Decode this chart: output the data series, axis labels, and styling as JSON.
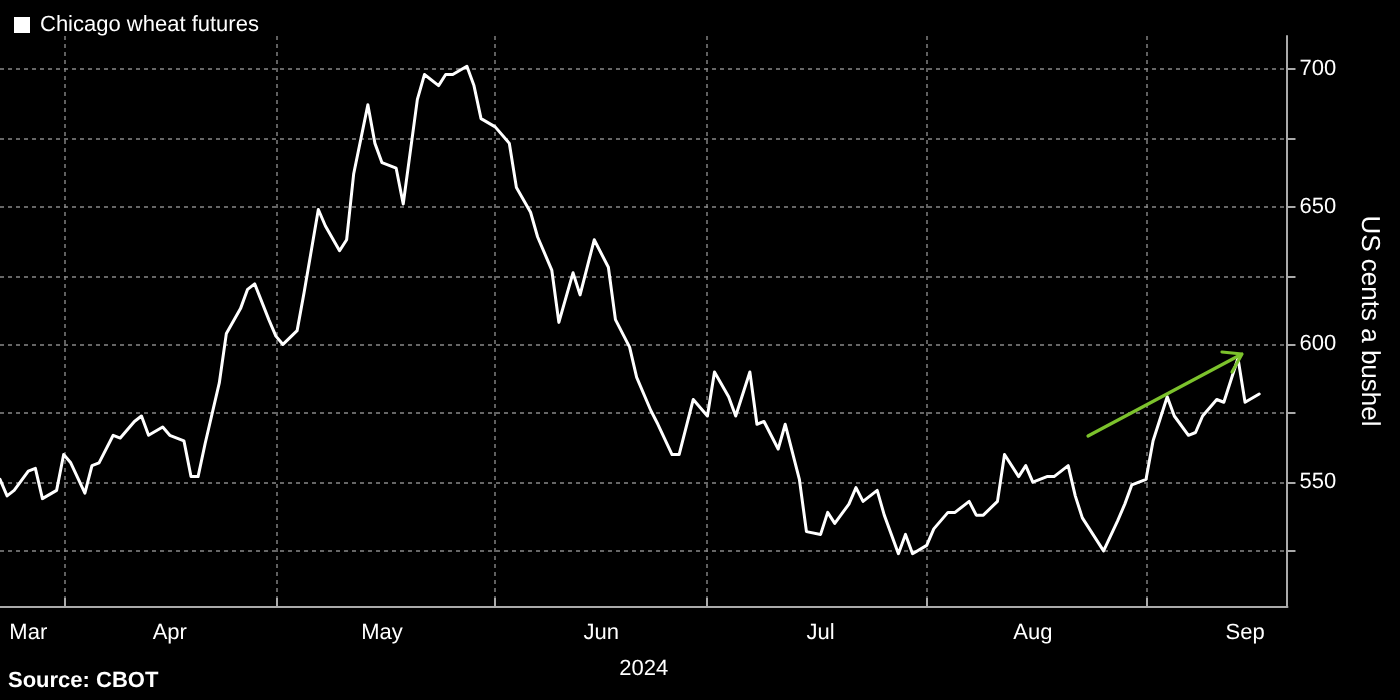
{
  "chart_data": {
    "type": "line",
    "xlabel": "2024",
    "ylabel": "US cents a bushel",
    "annotations": [
      "Source: CBOT"
    ],
    "x": [
      "2024-03-23",
      "2024-03-24",
      "2024-03-25",
      "2024-03-27",
      "2024-03-28",
      "2024-03-29",
      "2024-03-31",
      "2024-04-01",
      "2024-04-02",
      "2024-04-04",
      "2024-04-05",
      "2024-04-06",
      "2024-04-08",
      "2024-04-09",
      "2024-04-11",
      "2024-04-12",
      "2024-04-13",
      "2024-04-15",
      "2024-04-16",
      "2024-04-18",
      "2024-04-19",
      "2024-04-20",
      "2024-04-21",
      "2024-04-23",
      "2024-04-24",
      "2024-04-26",
      "2024-04-27",
      "2024-04-28",
      "2024-04-30",
      "2024-05-01",
      "2024-05-02",
      "2024-05-04",
      "2024-05-05",
      "2024-05-07",
      "2024-05-08",
      "2024-05-10",
      "2024-05-11",
      "2024-05-12",
      "2024-05-14",
      "2024-05-15",
      "2024-05-16",
      "2024-05-18",
      "2024-05-19",
      "2024-05-21",
      "2024-05-22",
      "2024-05-24",
      "2024-05-25",
      "2024-05-26",
      "2024-05-28",
      "2024-05-29",
      "2024-05-30",
      "2024-06-01",
      "2024-06-03",
      "2024-06-04",
      "2024-06-06",
      "2024-06-07",
      "2024-06-09",
      "2024-06-10",
      "2024-06-12",
      "2024-06-13",
      "2024-06-15",
      "2024-06-17",
      "2024-06-18",
      "2024-06-20",
      "2024-06-21",
      "2024-06-23",
      "2024-06-24",
      "2024-06-26",
      "2024-06-27",
      "2024-06-29",
      "2024-07-01",
      "2024-07-02",
      "2024-07-04",
      "2024-07-05",
      "2024-07-07",
      "2024-07-08",
      "2024-07-09",
      "2024-07-11",
      "2024-07-12",
      "2024-07-14",
      "2024-07-15",
      "2024-07-17",
      "2024-07-18",
      "2024-07-19",
      "2024-07-21",
      "2024-07-22",
      "2024-07-23",
      "2024-07-25",
      "2024-07-26",
      "2024-07-28",
      "2024-07-29",
      "2024-07-30",
      "2024-08-01",
      "2024-08-02",
      "2024-08-04",
      "2024-08-05",
      "2024-08-07",
      "2024-08-08",
      "2024-08-09",
      "2024-08-11",
      "2024-08-12",
      "2024-08-14",
      "2024-08-15",
      "2024-08-16",
      "2024-08-18",
      "2024-08-19",
      "2024-08-21",
      "2024-08-22",
      "2024-08-23",
      "2024-08-25",
      "2024-08-26",
      "2024-08-28",
      "2024-08-29",
      "2024-08-30",
      "2024-09-01",
      "2024-09-02",
      "2024-09-04",
      "2024-09-05",
      "2024-09-07",
      "2024-09-08",
      "2024-09-09",
      "2024-09-11",
      "2024-09-12",
      "2024-09-14",
      "2024-09-15",
      "2024-09-17"
    ],
    "series": [
      {
        "name": "Chicago wheat futures",
        "color": "#ffffff",
        "values": [
          551,
          545,
          547,
          554,
          555,
          544,
          547,
          560,
          557,
          546,
          556,
          557,
          567,
          566,
          572,
          574,
          567,
          570,
          567,
          565,
          552,
          552,
          564,
          586,
          604,
          613,
          620,
          622,
          609,
          603,
          600,
          605,
          619,
          649,
          643,
          634,
          638,
          662,
          687,
          673,
          666,
          664,
          651,
          689,
          698,
          694,
          698,
          698,
          701,
          694,
          682,
          679,
          673,
          657,
          648,
          639,
          627,
          608,
          626,
          618,
          638,
          628,
          609,
          599,
          588,
          576,
          571,
          560,
          560,
          580,
          574,
          590,
          581,
          574,
          590,
          571,
          572,
          562,
          571,
          551,
          532,
          531,
          539,
          535,
          542,
          548,
          543,
          547,
          538,
          524,
          531,
          524,
          527,
          533,
          539,
          539,
          543,
          538,
          538,
          543,
          560,
          552,
          556,
          550,
          552,
          552,
          556,
          545,
          537,
          529,
          525,
          536,
          542,
          549,
          551,
          565,
          581,
          574,
          567,
          568,
          574,
          580,
          579,
          595,
          579,
          582
        ]
      }
    ],
    "xlim": [
      "2024-03-23",
      "2024-09-21"
    ],
    "xticks": [
      {
        "value": "2024-03-27",
        "label": "Mar"
      },
      {
        "value": "2024-04-01",
        "label": null
      },
      {
        "value": "2024-04-16",
        "label": "Apr"
      },
      {
        "value": "2024-05-01",
        "label": null
      },
      {
        "value": "2024-05-16",
        "label": "May"
      },
      {
        "value": "2024-06-01",
        "label": null
      },
      {
        "value": "2024-06-16",
        "label": "Jun"
      },
      {
        "value": "2024-07-01",
        "label": null
      },
      {
        "value": "2024-07-17",
        "label": "Jul"
      },
      {
        "value": "2024-08-01",
        "label": null
      },
      {
        "value": "2024-08-16",
        "label": "Aug"
      },
      {
        "value": "2024-09-01",
        "label": null
      },
      {
        "value": "2024-09-15",
        "label": "Sep"
      }
    ],
    "ylim": [
      505,
      712
    ],
    "yticks": [
      {
        "value": 525,
        "label": null
      },
      550,
      {
        "value": 575,
        "label": null
      },
      600,
      {
        "value": 625,
        "label": null
      },
      650,
      {
        "value": 675,
        "label": null
      },
      700
    ],
    "grid": true,
    "legend": "top left",
    "marker": "none",
    "line_style": "solid"
  }
}
